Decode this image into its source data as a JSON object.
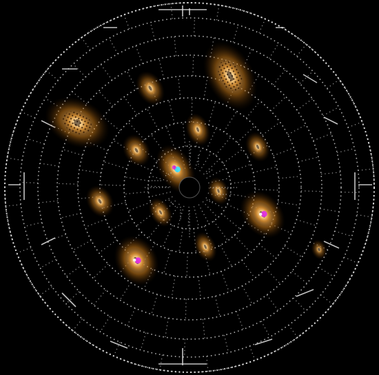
{
  "image": {
    "kind": "diffraction-detector-pattern",
    "colors": {
      "background": "#000000",
      "grid": "#e6e6e6",
      "spot_core": "#ffd28a",
      "spot_mid": "#c97a18",
      "spot_edge": "#3a1a00",
      "hot_magenta": "#e030e0",
      "hot_cyan": "#40e0ff",
      "beam_stop": "#000000"
    },
    "spots": [
      {
        "name": "spot-upper-right-large",
        "intensity": 0.9,
        "speckled": true,
        "hot": "none"
      },
      {
        "name": "spot-upper-left-large",
        "intensity": 0.9,
        "speckled": true,
        "hot": "none"
      },
      {
        "name": "spot-upper-mid",
        "intensity": 0.7,
        "speckled": false,
        "hot": "none"
      },
      {
        "name": "spot-center-upper",
        "intensity": 0.8,
        "speckled": false,
        "hot": "none"
      },
      {
        "name": "spot-right-upper",
        "intensity": 0.6,
        "speckled": false,
        "hot": "none"
      },
      {
        "name": "spot-left-mid",
        "intensity": 0.7,
        "speckled": false,
        "hot": "none"
      },
      {
        "name": "spot-center-bright",
        "intensity": 1.0,
        "speckled": false,
        "hot": "cyan"
      },
      {
        "name": "spot-center-right",
        "intensity": 0.6,
        "speckled": false,
        "hot": "none"
      },
      {
        "name": "spot-left-lower",
        "intensity": 0.7,
        "speckled": false,
        "hot": "none"
      },
      {
        "name": "spot-center-lower",
        "intensity": 0.7,
        "speckled": false,
        "hot": "none"
      },
      {
        "name": "spot-right-bright",
        "intensity": 1.0,
        "speckled": false,
        "hot": "magenta"
      },
      {
        "name": "spot-bottom-center",
        "intensity": 0.7,
        "speckled": false,
        "hot": "none"
      },
      {
        "name": "spot-bottom-left-bright",
        "intensity": 1.0,
        "speckled": false,
        "hot": "magenta"
      },
      {
        "name": "spot-bottom-right-faint",
        "intensity": 0.3,
        "speckled": false,
        "hot": "none"
      }
    ]
  }
}
